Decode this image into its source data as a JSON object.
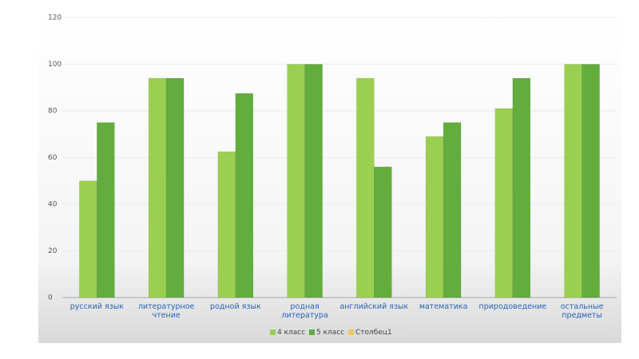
{
  "chart_data": {
    "type": "bar",
    "categories": [
      "русский язык",
      "литературное чтение",
      "родной язык",
      "родная литература",
      "английский язык",
      "математика",
      "природоведение",
      "остальные предметы"
    ],
    "series": [
      {
        "name": "4 класс",
        "color": "#9bcf4f",
        "values": [
          50,
          94,
          62.5,
          100,
          94,
          69,
          81,
          100
        ]
      },
      {
        "name": "5 класс",
        "color": "#62ad3e",
        "values": [
          75,
          94,
          87.5,
          100,
          56,
          75,
          94,
          100
        ]
      },
      {
        "name": "Столбец1",
        "color": "#f0c75e",
        "values": [
          null,
          null,
          null,
          null,
          null,
          null,
          null,
          null
        ]
      }
    ],
    "ylim": [
      0,
      120
    ],
    "yticks": [
      0,
      20,
      40,
      60,
      80,
      100,
      120
    ],
    "grid": true
  }
}
